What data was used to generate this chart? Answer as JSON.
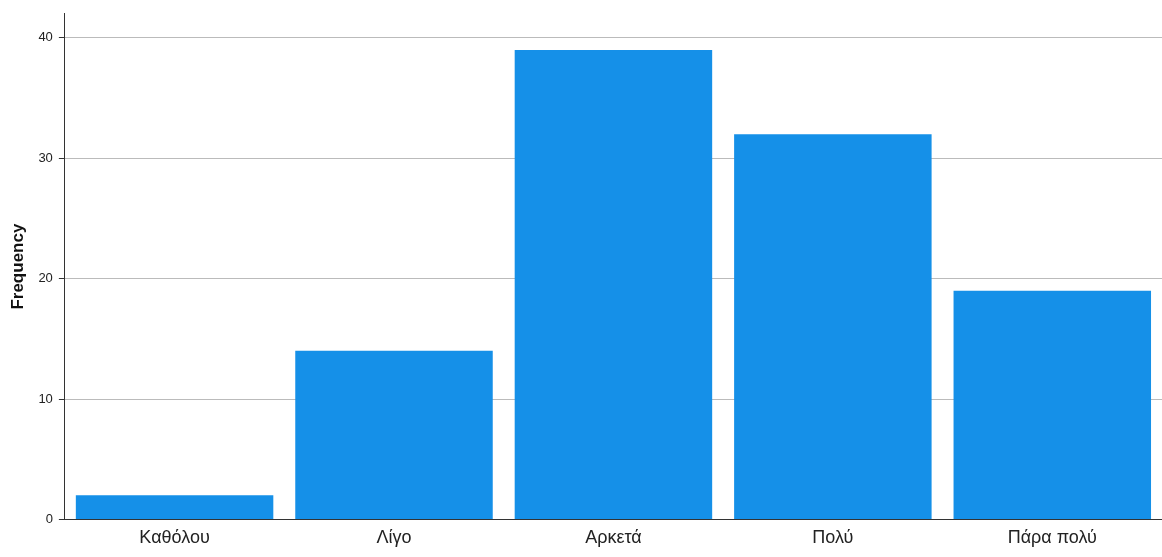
{
  "chart_data": {
    "type": "bar",
    "ylabel": "Frequency",
    "categories": [
      "Καθόλου",
      "Λίγο",
      "Αρκετά",
      "Πολύ",
      "Πάρα πολύ"
    ],
    "values": [
      2,
      14,
      39,
      32,
      19
    ],
    "color": "#1590e8",
    "ylim": [
      0,
      42
    ],
    "yticks": [
      0,
      10,
      20,
      30,
      40
    ],
    "grid": "y",
    "legend": false
  }
}
